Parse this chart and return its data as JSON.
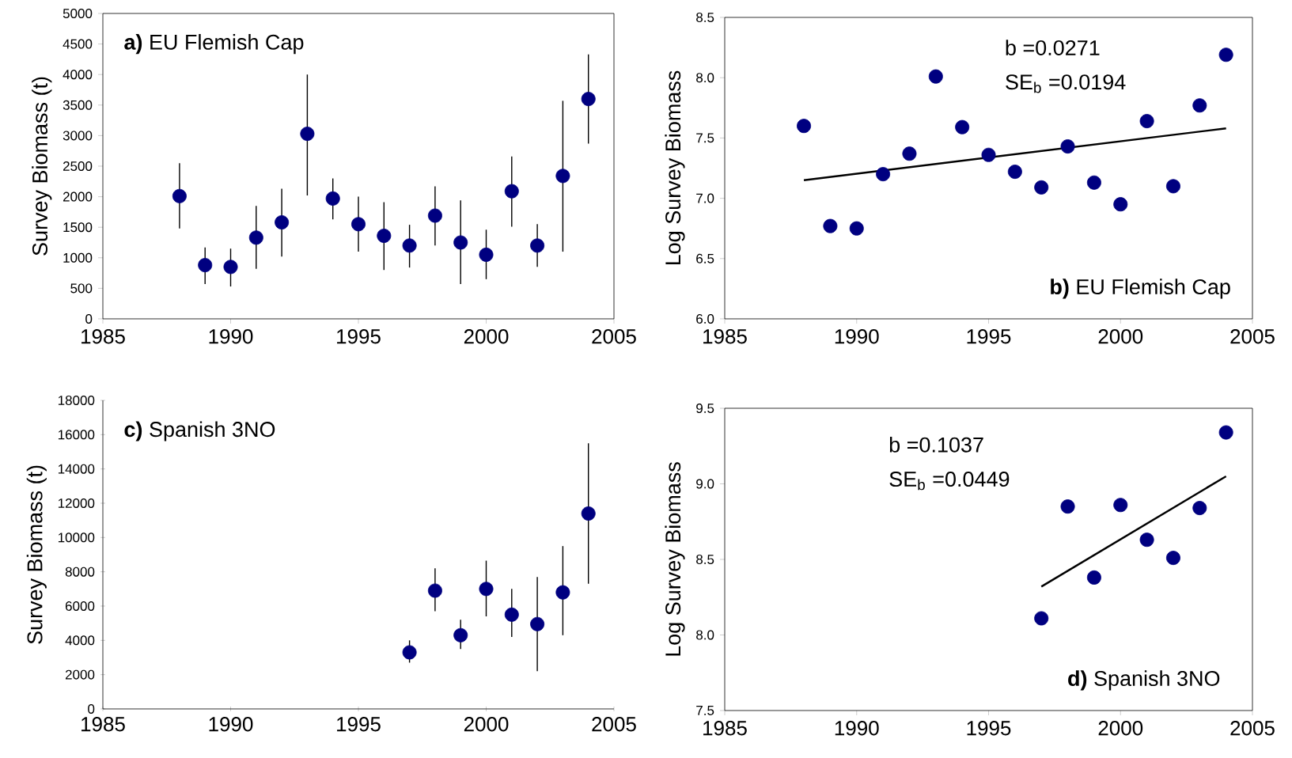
{
  "chart_data": [
    {
      "type": "scatter",
      "title": "**a)** EU Flemish Cap",
      "ylabel": "Survey Biomass (t)",
      "marker": "circle",
      "xlim": [
        1985,
        2005
      ],
      "xticks": [
        1985,
        1990,
        1995,
        2000,
        2005
      ],
      "ylim": [
        0,
        5000
      ],
      "yticks": [
        0,
        500,
        1000,
        1500,
        2000,
        2500,
        3000,
        3500,
        4000,
        4500,
        5000
      ],
      "x": [
        1988,
        1989,
        1990,
        1991,
        1992,
        1993,
        1994,
        1995,
        1996,
        1997,
        1998,
        1999,
        2000,
        2001,
        2002,
        2003,
        2004
      ],
      "series": [
        {
          "color": "#000080",
          "values": [
            2010,
            880,
            850,
            1330,
            1580,
            3030,
            1970,
            1550,
            1360,
            1200,
            1690,
            1250,
            1050,
            2090,
            1200,
            2340,
            3600
          ],
          "errors": [
            [
              1480,
              2550
            ],
            [
              570,
              1170
            ],
            [
              530,
              1150
            ],
            [
              820,
              1850
            ],
            [
              1020,
              2130
            ],
            [
              2020,
              4000
            ],
            [
              1630,
              2300
            ],
            [
              1100,
              2000
            ],
            [
              800,
              1910
            ],
            [
              840,
              1540
            ],
            [
              1200,
              2170
            ],
            [
              570,
              1940
            ],
            [
              650,
              1460
            ],
            [
              1510,
              2660
            ],
            [
              850,
              1550
            ],
            [
              1100,
              3570
            ],
            [
              2870,
              4330
            ]
          ]
        }
      ]
    },
    {
      "type": "scatter",
      "title": "**b)** EU Flemish Cap",
      "ylabel": "Log Survey Biomass",
      "annotations": [
        "b =0.0271",
        "SE$_{b}$ =0.0194"
      ],
      "xlim": [
        1985,
        2005
      ],
      "xticks": [
        1985,
        1990,
        1995,
        2000,
        2005
      ],
      "ylim": [
        6,
        8.5
      ],
      "yticks": [
        {
          "value": 6,
          "label": "6.0"
        },
        {
          "value": 6.5,
          "label": "6.5"
        },
        {
          "value": 7,
          "label": "7.0"
        },
        {
          "value": 7.5,
          "label": "7.5"
        },
        {
          "value": 8,
          "label": "8.0"
        },
        {
          "value": 8.5,
          "label": "8.5"
        }
      ],
      "x": [
        1988,
        1989,
        1990,
        1991,
        1992,
        1993,
        1994,
        1995,
        1996,
        1997,
        1998,
        1999,
        2000,
        2001,
        2002,
        2003,
        2004
      ],
      "series": [
        {
          "marker": "circle",
          "color": "#000080",
          "values": [
            7.6,
            6.77,
            6.75,
            7.2,
            7.37,
            8.01,
            7.59,
            7.36,
            7.22,
            7.09,
            7.43,
            7.13,
            6.95,
            7.64,
            7.1,
            7.77,
            8.19
          ]
        },
        {
          "type": "line",
          "color": "#000000",
          "x": [
            1988,
            2004
          ],
          "values": [
            7.15,
            7.58
          ]
        }
      ]
    },
    {
      "type": "scatter",
      "title": "**c)** Spanish 3NO",
      "ylabel": "Survey Biomass (t)",
      "marker": "circle",
      "xlim": [
        1985,
        2005
      ],
      "xticks": [
        1985,
        1990,
        1995,
        2000,
        2005
      ],
      "ylim": [
        0,
        18000
      ],
      "yticks": [
        0,
        2000,
        4000,
        6000,
        8000,
        10000,
        12000,
        14000,
        16000,
        18000
      ],
      "x": [
        1997,
        1998,
        1999,
        2000,
        2001,
        2002,
        2003,
        2004
      ],
      "series": [
        {
          "color": "#000080",
          "values": [
            3300,
            6900,
            4300,
            7000,
            5500,
            4950,
            6800,
            11400
          ],
          "errors": [
            [
              2700,
              4000
            ],
            [
              5700,
              8200
            ],
            [
              3500,
              5200
            ],
            [
              5400,
              8650
            ],
            [
              4200,
              7000
            ],
            [
              2200,
              7700
            ],
            [
              4300,
              9500
            ],
            [
              7300,
              15500
            ]
          ]
        }
      ]
    },
    {
      "type": "scatter",
      "title": "**d)** Spanish 3NO",
      "ylabel": "Log Survey Biomass",
      "annotations": [
        "b =0.1037",
        "SE$_{b}$ =0.0449"
      ],
      "xlim": [
        1985,
        2005
      ],
      "xticks": [
        1985,
        1990,
        1995,
        2000,
        2005
      ],
      "ylim": [
        7.5,
        9.5
      ],
      "yticks": [
        {
          "value": 7.5,
          "label": "7.5"
        },
        {
          "value": 8,
          "label": "8.0"
        },
        {
          "value": 8.5,
          "label": "8.5"
        },
        {
          "value": 9,
          "label": "9.0"
        },
        {
          "value": 9.5,
          "label": "9.5"
        }
      ],
      "x": [
        1997,
        1998,
        1999,
        2000,
        2001,
        2002,
        2003,
        2004
      ],
      "series": [
        {
          "marker": "circle",
          "color": "#000080",
          "values": [
            8.11,
            8.85,
            8.38,
            8.86,
            8.63,
            8.51,
            8.84,
            9.34
          ]
        },
        {
          "type": "line",
          "color": "#000000",
          "x": [
            1997,
            2004
          ],
          "values": [
            8.32,
            9.05
          ]
        }
      ]
    }
  ]
}
